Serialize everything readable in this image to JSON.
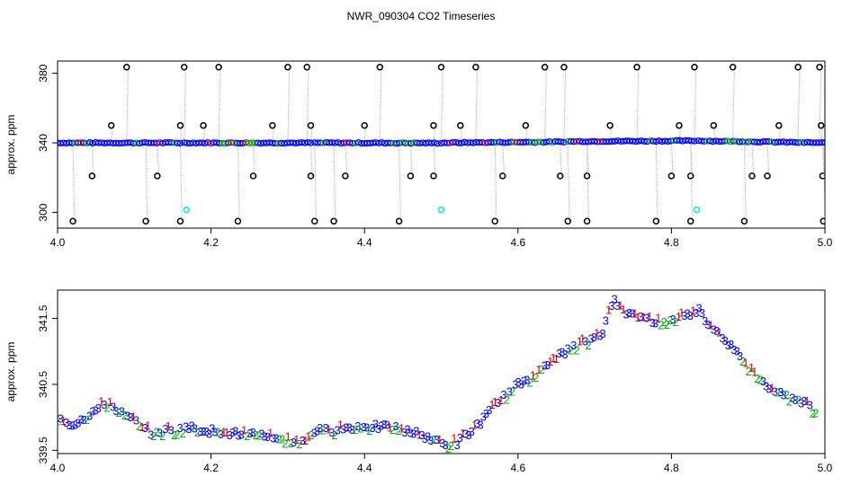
{
  "figure": {
    "title": "NWR_090304  CO2 Timeseries"
  },
  "chart_data": [
    {
      "type": "scatter",
      "panel": "top",
      "ylabel": "approx. ppm",
      "xlabel": "",
      "xlim": [
        4.0,
        5.0
      ],
      "ylim": [
        291,
        387
      ],
      "x_ticks": [
        "4.0",
        "4.2",
        "4.4",
        "4.6",
        "4.8",
        "5.0"
      ],
      "x_tick_values": [
        4.0,
        4.2,
        4.4,
        4.6,
        4.8,
        5.0
      ],
      "y_ticks": [
        "300",
        "340",
        "380"
      ],
      "y_tick_values": [
        300,
        340,
        380
      ],
      "grid": false,
      "colors": {
        "outlier": "#000000",
        "outlier_flag": "#00e5e5",
        "trace": "#0000ff",
        "trace_green": "#00b000",
        "trace_red": "#e00000",
        "drop_line": "#aaaaaa"
      },
      "baseline_segments": [
        {
          "x": [
            4.0,
            4.16
          ],
          "y": [
            340.0,
            340.0
          ]
        },
        {
          "x": [
            4.165,
            4.33
          ],
          "y": [
            340.0,
            340.0
          ]
        },
        {
          "x": [
            4.335,
            4.495
          ],
          "y": [
            340.0,
            339.9
          ]
        },
        {
          "x": [
            4.5,
            4.66
          ],
          "y": [
            340.0,
            340.6
          ]
        },
        {
          "x": [
            4.665,
            4.83
          ],
          "y": [
            340.8,
            341.2
          ]
        },
        {
          "x": [
            4.835,
            5.0
          ],
          "y": [
            341.2,
            340.0
          ]
        }
      ],
      "outliers_high": [
        4.09,
        4.165,
        4.21,
        4.3,
        4.325,
        4.42,
        4.5,
        4.545,
        4.635,
        4.66,
        4.755,
        4.83,
        4.88,
        4.965,
        4.993
      ],
      "outliers_mid_high": [
        4.07,
        4.16,
        4.19,
        4.28,
        4.33,
        4.4,
        4.49,
        4.525,
        4.61,
        4.72,
        4.81,
        4.855,
        4.94,
        4.995
      ],
      "outliers_low": [
        4.045,
        4.13,
        4.255,
        4.33,
        4.375,
        4.46,
        4.49,
        4.58,
        4.655,
        4.69,
        4.8,
        4.825,
        4.905,
        4.925,
        4.997
      ],
      "outliers_bottom": [
        4.02,
        4.115,
        4.16,
        4.235,
        4.335,
        4.36,
        4.445,
        4.57,
        4.665,
        4.69,
        4.78,
        4.825,
        4.895,
        4.998
      ],
      "values": {
        "high": 383.5,
        "mid_high": 350.0,
        "low": 321.0,
        "bottom": 295.0
      },
      "cyan_flags": {
        "x": [
          4.168,
          4.5,
          4.833
        ],
        "y": [
          301.5,
          301.5,
          301.5
        ]
      }
    },
    {
      "type": "scatter",
      "panel": "bottom",
      "ylabel": "approx. ppm",
      "xlabel": "",
      "xlim": [
        4.0,
        5.0
      ],
      "ylim": [
        339.45,
        341.93
      ],
      "x_ticks": [
        "4.0",
        "4.2",
        "4.4",
        "4.6",
        "4.8",
        "5.0"
      ],
      "x_tick_values": [
        4.0,
        4.2,
        4.4,
        4.6,
        4.8,
        5.0
      ],
      "y_ticks": [
        "339.5",
        "340.5",
        "341.5"
      ],
      "y_tick_values": [
        339.5,
        340.5,
        341.5
      ],
      "grid": false,
      "marker_labels": [
        "1",
        "2",
        "3"
      ],
      "series": [
        {
          "name": "1",
          "color": "#e00000"
        },
        {
          "name": "2",
          "color": "#00b000"
        },
        {
          "name": "3",
          "color": "#0000ff"
        }
      ],
      "trend_x": [
        4.0,
        4.02,
        4.04,
        4.055,
        4.065,
        4.08,
        4.1,
        4.12,
        4.14,
        4.16,
        4.165,
        4.2,
        4.24,
        4.28,
        4.31,
        4.325,
        4.33,
        4.36,
        4.4,
        4.44,
        4.47,
        4.495,
        4.5,
        4.52,
        4.54,
        4.56,
        4.58,
        4.6,
        4.62,
        4.64,
        4.66,
        4.69,
        4.71,
        4.725,
        4.74,
        4.76,
        4.78,
        4.8,
        4.82,
        4.835,
        4.85,
        4.87,
        4.89,
        4.91,
        4.93,
        4.95,
        4.97,
        4.99
      ],
      "trend_y": [
        339.98,
        339.9,
        340.05,
        340.15,
        340.23,
        340.1,
        339.95,
        339.78,
        339.8,
        339.82,
        339.86,
        339.8,
        339.75,
        339.72,
        339.65,
        339.62,
        339.8,
        339.82,
        339.88,
        339.84,
        339.75,
        339.65,
        339.6,
        339.62,
        339.8,
        340.05,
        340.3,
        340.5,
        340.65,
        340.8,
        341.0,
        341.15,
        341.3,
        341.8,
        341.6,
        341.5,
        341.45,
        341.5,
        341.55,
        341.65,
        341.4,
        341.2,
        340.9,
        340.65,
        340.45,
        340.35,
        340.25,
        340.1
      ]
    }
  ]
}
